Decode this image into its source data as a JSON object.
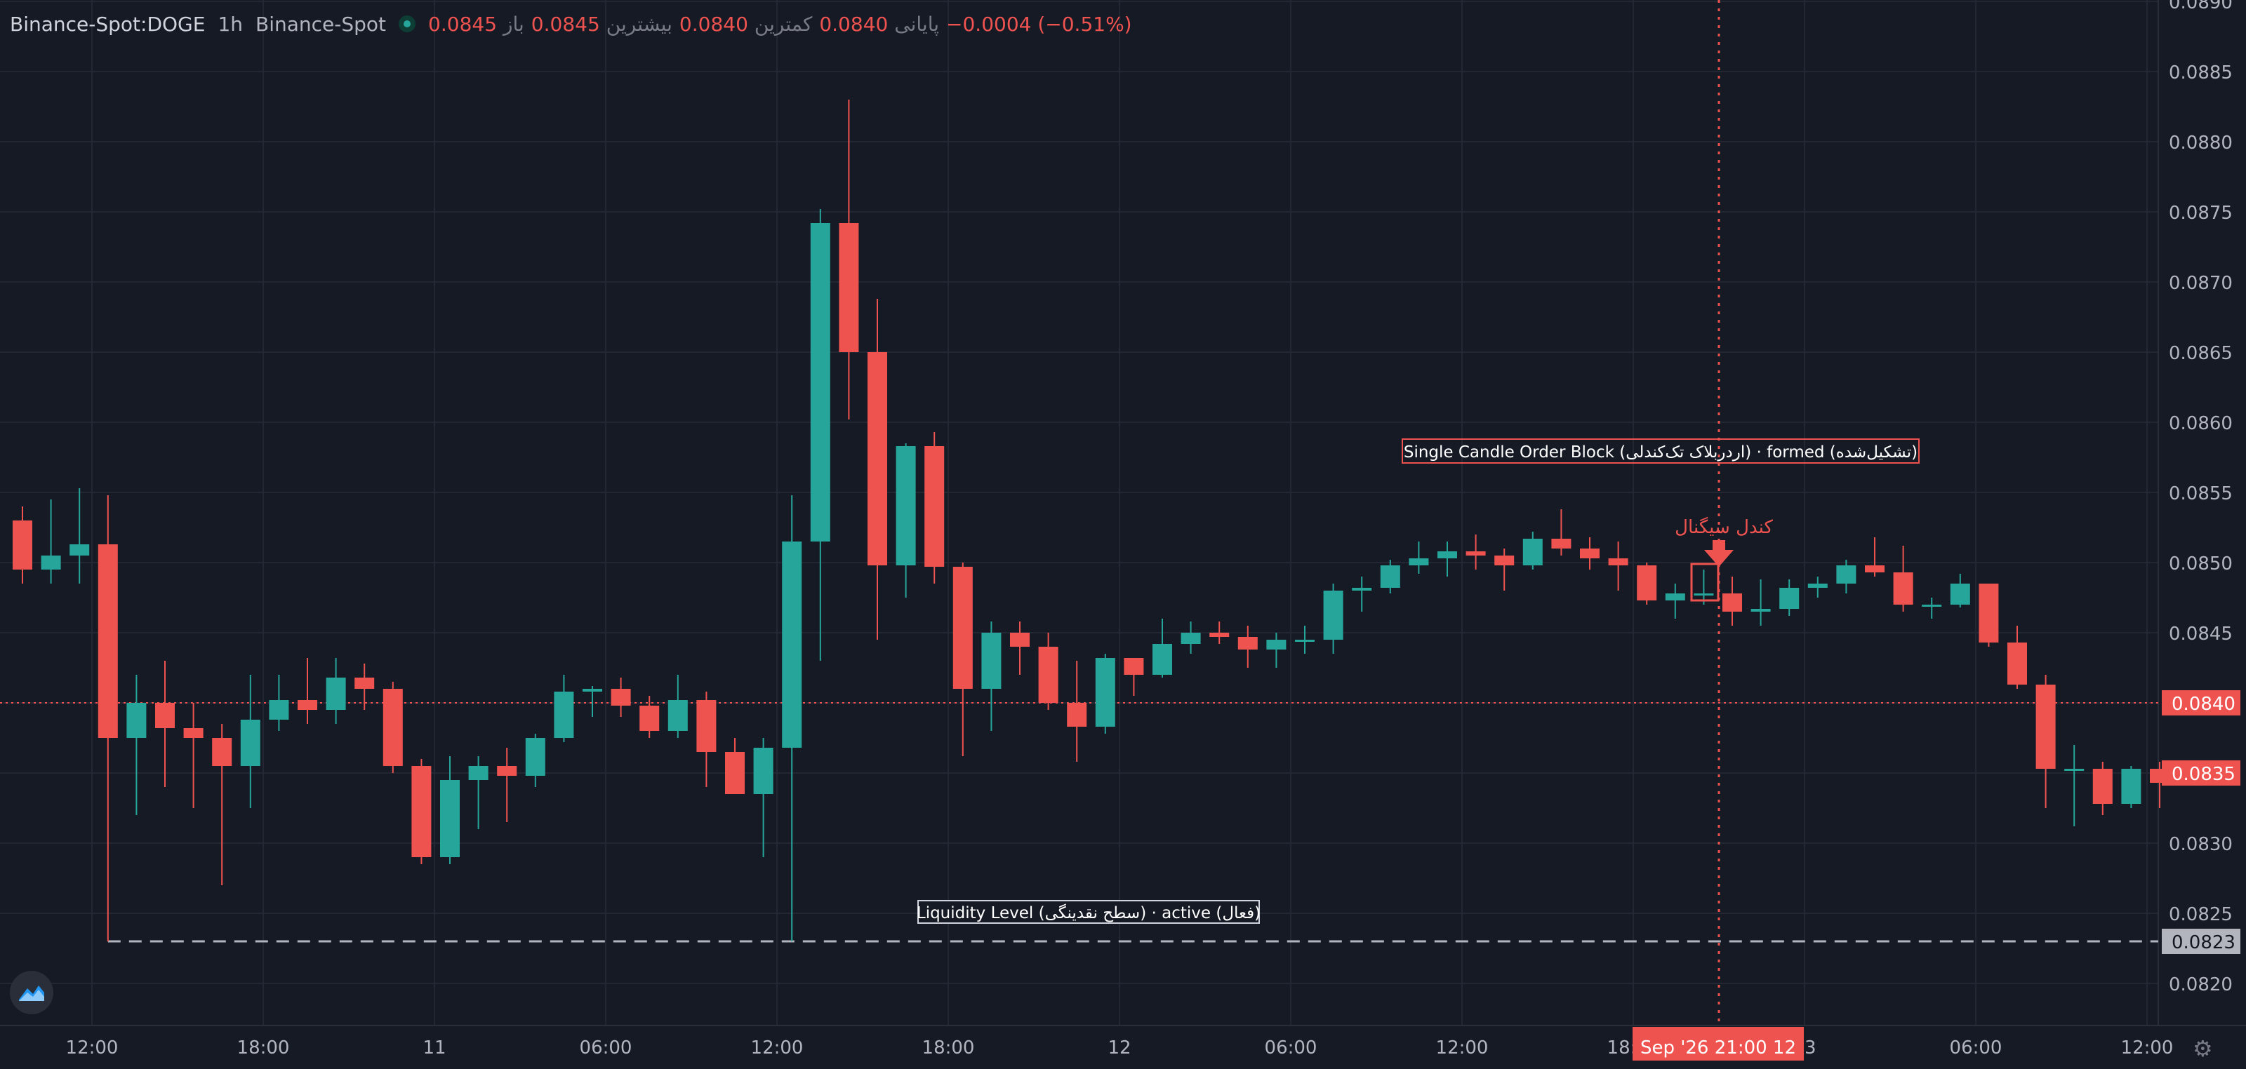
{
  "legend": {
    "symbol": "Binance-Spot:DOGE",
    "interval": "1h",
    "exchange": "Binance-Spot",
    "open_label": "باز",
    "open": "0.0845",
    "high_label": "بیشترین",
    "high": "0.0845",
    "low_label": "کمترین",
    "low": "0.0840",
    "close_label": "پایانی",
    "close": "0.0840",
    "change": "−0.0004 (−0.51%)"
  },
  "colors": {
    "up": "#26a69a",
    "down": "#ef5350",
    "background": "#161a25",
    "grid": "#232734",
    "axis_text": "#b2b5be"
  },
  "chart_data": {
    "type": "candlestick",
    "y_range": [
      0.08175,
      0.089
    ],
    "y_ticks": [
      "0.0820",
      "0.0825",
      "0.0830",
      "0.0835",
      "0.0840",
      "0.0845",
      "0.0850",
      "0.0855",
      "0.0860",
      "0.0865",
      "0.0870",
      "0.0875",
      "0.0880",
      "0.0885",
      "0.0890"
    ],
    "x_ticks": [
      "12:00",
      "18:00",
      "11",
      "06:00",
      "12:00",
      "18:00",
      "12",
      "06:00",
      "12:00",
      "18:00",
      "13",
      "06:00",
      "12:00"
    ],
    "candles": [
      {
        "o": 0.0853,
        "h": 0.0854,
        "l": 0.08485,
        "c": 0.08495
      },
      {
        "o": 0.08495,
        "h": 0.08545,
        "l": 0.08485,
        "c": 0.08505
      },
      {
        "o": 0.08505,
        "h": 0.08553,
        "l": 0.08485,
        "c": 0.08513
      },
      {
        "o": 0.08513,
        "h": 0.08548,
        "l": 0.0823,
        "c": 0.08375
      },
      {
        "o": 0.08375,
        "h": 0.0842,
        "l": 0.0832,
        "c": 0.084
      },
      {
        "o": 0.084,
        "h": 0.0843,
        "l": 0.0834,
        "c": 0.08382
      },
      {
        "o": 0.08382,
        "h": 0.084,
        "l": 0.08325,
        "c": 0.08375
      },
      {
        "o": 0.08375,
        "h": 0.08385,
        "l": 0.0827,
        "c": 0.08355
      },
      {
        "o": 0.08355,
        "h": 0.0842,
        "l": 0.08325,
        "c": 0.08388
      },
      {
        "o": 0.08388,
        "h": 0.0842,
        "l": 0.0838,
        "c": 0.08402
      },
      {
        "o": 0.08402,
        "h": 0.08432,
        "l": 0.08385,
        "c": 0.08395
      },
      {
        "o": 0.08395,
        "h": 0.08432,
        "l": 0.08385,
        "c": 0.08418
      },
      {
        "o": 0.08418,
        "h": 0.08428,
        "l": 0.08395,
        "c": 0.0841
      },
      {
        "o": 0.0841,
        "h": 0.08415,
        "l": 0.0835,
        "c": 0.08355
      },
      {
        "o": 0.08355,
        "h": 0.0836,
        "l": 0.08285,
        "c": 0.0829
      },
      {
        "o": 0.0829,
        "h": 0.08362,
        "l": 0.08285,
        "c": 0.08345
      },
      {
        "o": 0.08345,
        "h": 0.08362,
        "l": 0.0831,
        "c": 0.08355
      },
      {
        "o": 0.08355,
        "h": 0.08368,
        "l": 0.08315,
        "c": 0.08348
      },
      {
        "o": 0.08348,
        "h": 0.08378,
        "l": 0.0834,
        "c": 0.08375
      },
      {
        "o": 0.08375,
        "h": 0.0842,
        "l": 0.08372,
        "c": 0.08408
      },
      {
        "o": 0.08408,
        "h": 0.08412,
        "l": 0.0839,
        "c": 0.0841
      },
      {
        "o": 0.0841,
        "h": 0.08418,
        "l": 0.0839,
        "c": 0.08398
      },
      {
        "o": 0.08398,
        "h": 0.08405,
        "l": 0.08375,
        "c": 0.0838
      },
      {
        "o": 0.0838,
        "h": 0.0842,
        "l": 0.08375,
        "c": 0.08402
      },
      {
        "o": 0.08402,
        "h": 0.08408,
        "l": 0.0834,
        "c": 0.08365
      },
      {
        "o": 0.08365,
        "h": 0.08375,
        "l": 0.0834,
        "c": 0.08335
      },
      {
        "o": 0.08335,
        "h": 0.08375,
        "l": 0.0829,
        "c": 0.08368
      },
      {
        "o": 0.08368,
        "h": 0.08548,
        "l": 0.0823,
        "c": 0.08515
      },
      {
        "o": 0.08515,
        "h": 0.08752,
        "l": 0.0843,
        "c": 0.08742
      },
      {
        "o": 0.08742,
        "h": 0.0883,
        "l": 0.08602,
        "c": 0.0865
      },
      {
        "o": 0.0865,
        "h": 0.08688,
        "l": 0.08445,
        "c": 0.08498
      },
      {
        "o": 0.08498,
        "h": 0.08585,
        "l": 0.08475,
        "c": 0.08583
      },
      {
        "o": 0.08583,
        "h": 0.08593,
        "l": 0.08485,
        "c": 0.08497
      },
      {
        "o": 0.08497,
        "h": 0.085,
        "l": 0.08362,
        "c": 0.0841
      },
      {
        "o": 0.0841,
        "h": 0.08458,
        "l": 0.0838,
        "c": 0.0845
      },
      {
        "o": 0.0845,
        "h": 0.08458,
        "l": 0.0842,
        "c": 0.0844
      },
      {
        "o": 0.0844,
        "h": 0.0845,
        "l": 0.08395,
        "c": 0.084
      },
      {
        "o": 0.084,
        "h": 0.0843,
        "l": 0.08358,
        "c": 0.08383
      },
      {
        "o": 0.08383,
        "h": 0.08435,
        "l": 0.08378,
        "c": 0.08432
      },
      {
        "o": 0.08432,
        "h": 0.08432,
        "l": 0.08405,
        "c": 0.0842
      },
      {
        "o": 0.0842,
        "h": 0.0846,
        "l": 0.08418,
        "c": 0.08442
      },
      {
        "o": 0.08442,
        "h": 0.08458,
        "l": 0.08435,
        "c": 0.0845
      },
      {
        "o": 0.0845,
        "h": 0.08458,
        "l": 0.08442,
        "c": 0.08447
      },
      {
        "o": 0.08447,
        "h": 0.08455,
        "l": 0.08425,
        "c": 0.08438
      },
      {
        "o": 0.08438,
        "h": 0.0845,
        "l": 0.08425,
        "c": 0.08445
      },
      {
        "o": 0.08445,
        "h": 0.08455,
        "l": 0.08435,
        "c": 0.08445
      },
      {
        "o": 0.08445,
        "h": 0.08485,
        "l": 0.08435,
        "c": 0.0848
      },
      {
        "o": 0.0848,
        "h": 0.0849,
        "l": 0.08465,
        "c": 0.08482
      },
      {
        "o": 0.08482,
        "h": 0.08502,
        "l": 0.08478,
        "c": 0.08498
      },
      {
        "o": 0.08498,
        "h": 0.08515,
        "l": 0.08492,
        "c": 0.08503
      },
      {
        "o": 0.08503,
        "h": 0.08515,
        "l": 0.0849,
        "c": 0.08508
      },
      {
        "o": 0.08508,
        "h": 0.0852,
        "l": 0.08495,
        "c": 0.08505
      },
      {
        "o": 0.08505,
        "h": 0.0851,
        "l": 0.0848,
        "c": 0.08498
      },
      {
        "o": 0.08498,
        "h": 0.08522,
        "l": 0.08495,
        "c": 0.08517
      },
      {
        "o": 0.08517,
        "h": 0.08538,
        "l": 0.08505,
        "c": 0.0851
      },
      {
        "o": 0.0851,
        "h": 0.08518,
        "l": 0.08495,
        "c": 0.08503
      },
      {
        "o": 0.08503,
        "h": 0.08515,
        "l": 0.0848,
        "c": 0.08498
      },
      {
        "o": 0.08498,
        "h": 0.085,
        "l": 0.0847,
        "c": 0.08473
      },
      {
        "o": 0.08473,
        "h": 0.08485,
        "l": 0.0846,
        "c": 0.08478
      },
      {
        "o": 0.08478,
        "h": 0.08495,
        "l": 0.0847,
        "c": 0.08478
      },
      {
        "o": 0.08478,
        "h": 0.0849,
        "l": 0.08455,
        "c": 0.08465
      },
      {
        "o": 0.08465,
        "h": 0.08488,
        "l": 0.08455,
        "c": 0.08467
      },
      {
        "o": 0.08467,
        "h": 0.08488,
        "l": 0.08462,
        "c": 0.08482
      },
      {
        "o": 0.08482,
        "h": 0.0849,
        "l": 0.08475,
        "c": 0.08485
      },
      {
        "o": 0.08485,
        "h": 0.08502,
        "l": 0.08478,
        "c": 0.08498
      },
      {
        "o": 0.08498,
        "h": 0.08518,
        "l": 0.0849,
        "c": 0.08493
      },
      {
        "o": 0.08493,
        "h": 0.08512,
        "l": 0.08465,
        "c": 0.0847
      },
      {
        "o": 0.0847,
        "h": 0.08475,
        "l": 0.0846,
        "c": 0.0847
      },
      {
        "o": 0.0847,
        "h": 0.08492,
        "l": 0.08468,
        "c": 0.08485
      },
      {
        "o": 0.08485,
        "h": 0.08485,
        "l": 0.0844,
        "c": 0.08443
      },
      {
        "o": 0.08443,
        "h": 0.08455,
        "l": 0.0841,
        "c": 0.08413
      },
      {
        "o": 0.08413,
        "h": 0.0842,
        "l": 0.08325,
        "c": 0.08353
      },
      {
        "o": 0.08353,
        "h": 0.0837,
        "l": 0.08312,
        "c": 0.08353
      },
      {
        "o": 0.08353,
        "h": 0.08358,
        "l": 0.0832,
        "c": 0.08328
      },
      {
        "o": 0.08328,
        "h": 0.08355,
        "l": 0.08325,
        "c": 0.08353
      },
      {
        "o": 0.08353,
        "h": 0.08358,
        "l": 0.08325,
        "c": 0.08343
      }
    ],
    "current_price": {
      "value": 0.084,
      "label": "0.0840"
    },
    "price_tag": {
      "value": 0.0835,
      "label": "0.0835"
    },
    "liquidity": {
      "value": 0.0823,
      "label": "0.0823",
      "text": "Liquidity Level (سطح نقدینگی) · active (فعال)"
    },
    "order_block": {
      "text": "Single Candle Order Block (اردربلاک تک‌کندلی) · formed (تشکیل‌شده)"
    },
    "signal": {
      "text": "کندل سیگنال"
    },
    "crosshair_label": "Sep '26   21:00 12"
  }
}
